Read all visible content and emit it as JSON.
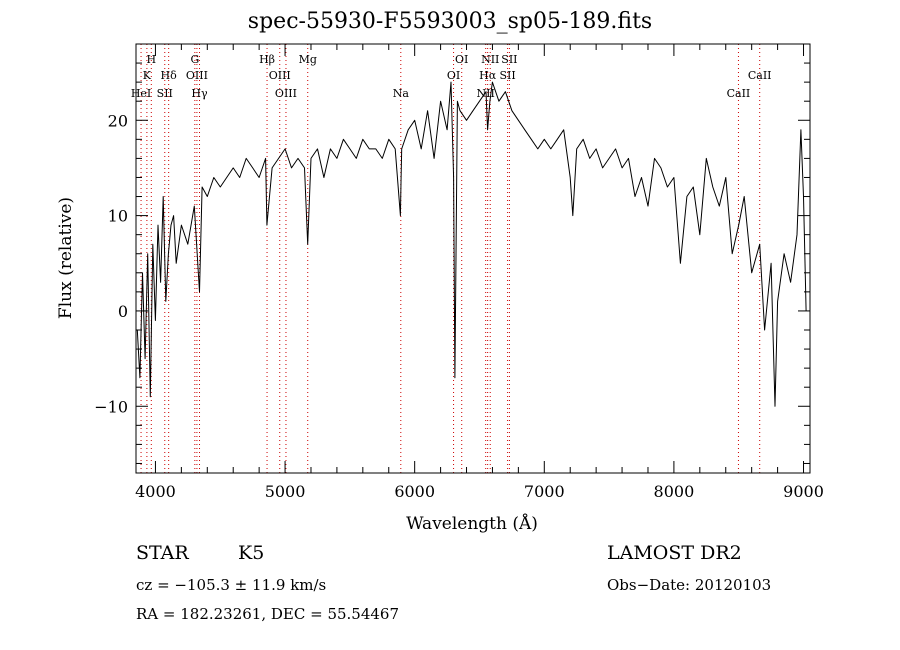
{
  "chart_data": {
    "type": "line",
    "title": "spec-55930-F5593003_sp05-189.fits",
    "xlabel": "Wavelength (Å)",
    "ylabel": "Flux (relative)",
    "xlim": [
      3850,
      9050
    ],
    "ylim": [
      -17,
      28
    ],
    "xticks": [
      4000,
      5000,
      6000,
      7000,
      8000,
      9000
    ],
    "yticks": [
      -10,
      0,
      10,
      20
    ],
    "grid": false,
    "line_color": "#000000",
    "marker_color": "#cc0000",
    "series": [
      {
        "x": [
          3860,
          3880,
          3900,
          3920,
          3940,
          3960,
          3980,
          4000,
          4020,
          4040,
          4060,
          4080,
          4100,
          4120,
          4140,
          4160,
          4200,
          4250,
          4300,
          4340,
          4360,
          4400,
          4450,
          4500,
          4550,
          4600,
          4650,
          4700,
          4750,
          4800,
          4850,
          4860,
          4900,
          4950,
          5000,
          5050,
          5100,
          5150,
          5175,
          5200,
          5250,
          5300,
          5350,
          5400,
          5450,
          5500,
          5550,
          5600,
          5650,
          5700,
          5750,
          5800,
          5850,
          5890,
          5895,
          5900,
          5950,
          6000,
          6050,
          6100,
          6150,
          6200,
          6250,
          6280,
          6300,
          6310,
          6330,
          6350,
          6400,
          6450,
          6500,
          6550,
          6563,
          6580,
          6600,
          6650,
          6700,
          6750,
          6800,
          6850,
          6900,
          6950,
          7000,
          7050,
          7100,
          7150,
          7200,
          7220,
          7250,
          7300,
          7350,
          7400,
          7450,
          7500,
          7550,
          7600,
          7650,
          7700,
          7750,
          7800,
          7850,
          7900,
          7950,
          8000,
          8050,
          8100,
          8150,
          8200,
          8250,
          8300,
          8350,
          8400,
          8450,
          8500,
          8542,
          8600,
          8662,
          8700,
          8750,
          8780,
          8800,
          8850,
          8900,
          8950,
          8980,
          9000,
          9020
        ],
        "y": [
          -2,
          -7,
          4,
          -5,
          6,
          -9,
          7,
          -1,
          9,
          3,
          12,
          1,
          6,
          9,
          10,
          5,
          9,
          7,
          11,
          2,
          13,
          12,
          14,
          13,
          14,
          15,
          14,
          16,
          15,
          14,
          16,
          9,
          15,
          16,
          17,
          15,
          16,
          15,
          7,
          16,
          17,
          14,
          17,
          16,
          18,
          17,
          16,
          18,
          17,
          17,
          16,
          18,
          17,
          10,
          14,
          17,
          19,
          20,
          17,
          21,
          16,
          22,
          19,
          24,
          14,
          -7,
          22,
          21,
          20,
          21,
          22,
          23,
          19,
          22,
          24,
          22,
          23,
          21,
          20,
          19,
          18,
          17,
          18,
          17,
          18,
          19,
          14,
          10,
          17,
          18,
          16,
          17,
          15,
          16,
          17,
          15,
          16,
          12,
          14,
          11,
          16,
          15,
          13,
          14,
          5,
          12,
          13,
          8,
          16,
          13,
          11,
          14,
          6,
          9,
          12,
          4,
          7,
          -2,
          5,
          -10,
          1,
          6,
          3,
          8,
          19,
          12,
          0
        ]
      }
    ],
    "line_markers": [
      {
        "x": 3934,
        "label": "K",
        "row": 2
      },
      {
        "x": 3968,
        "label": "H",
        "row": 1
      },
      {
        "x": 3889,
        "label": "HeI",
        "row": 3
      },
      {
        "x": 4072,
        "label": "SII",
        "row": 3
      },
      {
        "x": 4102,
        "label": "Hδ",
        "row": 2
      },
      {
        "x": 4304,
        "label": "G",
        "row": 1
      },
      {
        "x": 4320,
        "label": "OIII",
        "row": 2
      },
      {
        "x": 4340,
        "label": "Hγ",
        "row": 3
      },
      {
        "x": 4861,
        "label": "Hβ",
        "row": 1
      },
      {
        "x": 4959,
        "label": "OIII",
        "row": 2
      },
      {
        "x": 5007,
        "label": "OIII",
        "row": 3
      },
      {
        "x": 5175,
        "label": "Mg",
        "row": 1
      },
      {
        "x": 5893,
        "label": "Na",
        "row": 3
      },
      {
        "x": 6300,
        "label": "OI",
        "row": 2
      },
      {
        "x": 6363,
        "label": "OI",
        "row": 1
      },
      {
        "x": 6548,
        "label": "NII",
        "row": 3
      },
      {
        "x": 6563,
        "label": "Hα",
        "row": 2
      },
      {
        "x": 6583,
        "label": "NII",
        "row": 1
      },
      {
        "x": 6717,
        "label": "SII",
        "row": 2
      },
      {
        "x": 6731,
        "label": "SII",
        "row": 1
      },
      {
        "x": 8498,
        "label": "CaII",
        "row": 3
      },
      {
        "x": 8662,
        "label": "CaII",
        "row": 2
      }
    ]
  },
  "info": {
    "class_label": "STAR",
    "subclass": "K5",
    "survey": "LAMOST DR2",
    "redshift": "cz = −105.3 ± 11.9 km/s",
    "obs_date": "Obs−Date: 20120103",
    "coords": "RA = 182.23261, DEC =  55.54467"
  }
}
